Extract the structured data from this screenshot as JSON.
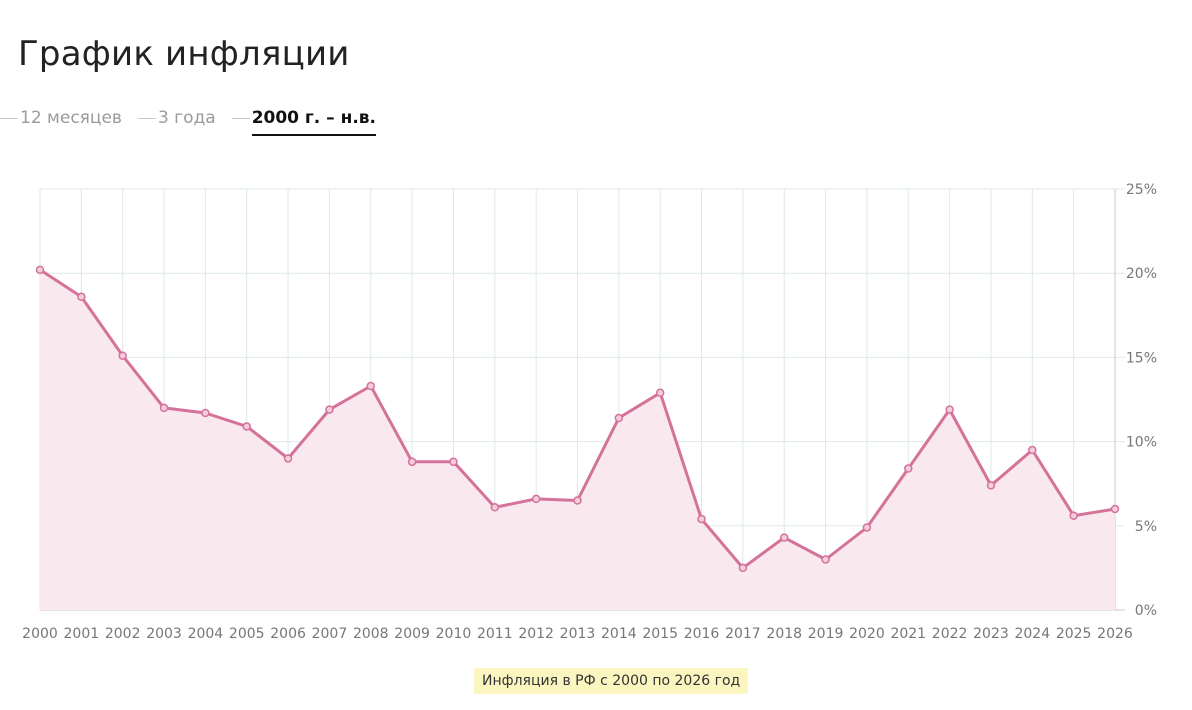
{
  "page": {
    "title": "График инфляции"
  },
  "tabs": [
    {
      "label": "12 месяцев",
      "active": false
    },
    {
      "label": "3 года",
      "active": false
    },
    {
      "label": "2000 г. – н.в.",
      "active": true
    }
  ],
  "caption": "Инфляция в РФ с 2000 по 2026 год",
  "colors": {
    "line": "#d4729a",
    "fill": "#f9e9ef",
    "grid": "#dde9e8",
    "axis_text": "#777777"
  },
  "chart_data": {
    "type": "area",
    "x": [
      "2000",
      "2001",
      "2002",
      "2003",
      "2004",
      "2005",
      "2006",
      "2007",
      "2008",
      "2009",
      "2010",
      "2011",
      "2012",
      "2013",
      "2014",
      "2015",
      "2016",
      "2017",
      "2018",
      "2019",
      "2020",
      "2021",
      "2022",
      "2023",
      "2024",
      "2025",
      "2026"
    ],
    "values": [
      20.2,
      18.6,
      15.1,
      12.0,
      11.7,
      10.9,
      9.0,
      11.9,
      13.3,
      8.8,
      8.8,
      6.1,
      6.6,
      6.5,
      11.4,
      12.9,
      5.4,
      2.5,
      4.3,
      3.0,
      4.9,
      8.4,
      11.9,
      7.4,
      9.5,
      5.6,
      6.0
    ],
    "y_ticks": [
      "0%",
      "5%",
      "10%",
      "15%",
      "20%",
      "25%"
    ],
    "ylim": [
      0,
      25
    ],
    "y_axis_position": "right",
    "grid": true,
    "title": "",
    "xlabel": "",
    "ylabel": ""
  }
}
